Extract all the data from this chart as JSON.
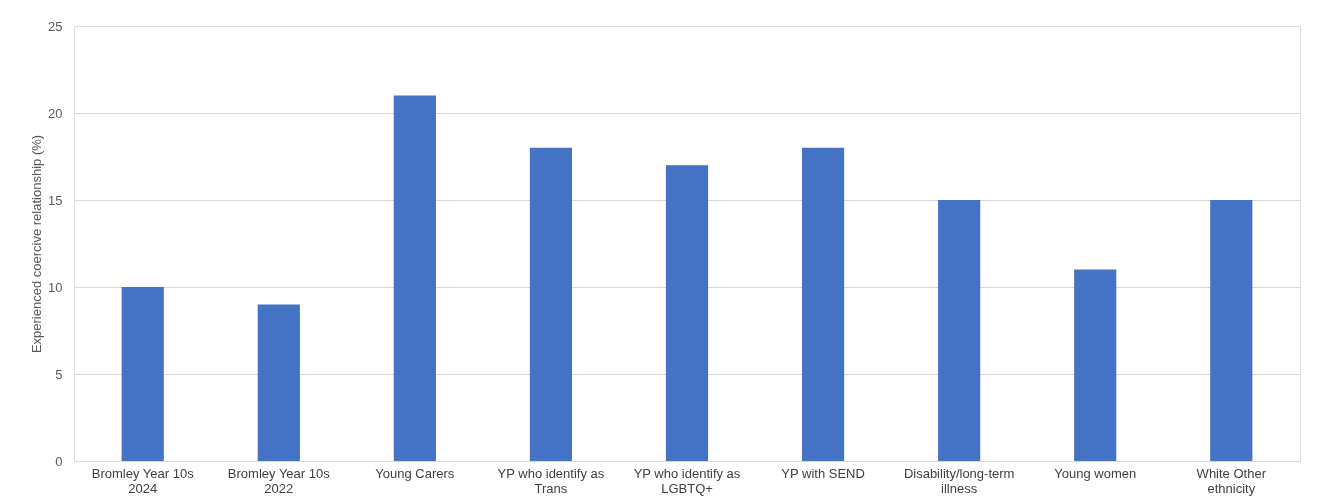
{
  "chart_data": {
    "type": "bar",
    "ylabel": "Experienced coercive relationship (%)",
    "categories": [
      "Bromley Year 10s 2024",
      "Bromley Year 10s 2022",
      "Young Carers",
      "YP who identify as Trans",
      "YP who identify as LGBTQ+",
      "YP with SEND",
      "Disability/long-term illness",
      "Young women",
      "White Other ethnicity"
    ],
    "values": [
      10,
      9,
      21,
      18,
      17,
      18,
      15,
      11,
      15
    ],
    "color": "#4472c4",
    "ylim": [
      0,
      25
    ],
    "yticks": [
      0,
      5,
      10,
      15,
      20,
      25
    ],
    "grid": "y"
  }
}
